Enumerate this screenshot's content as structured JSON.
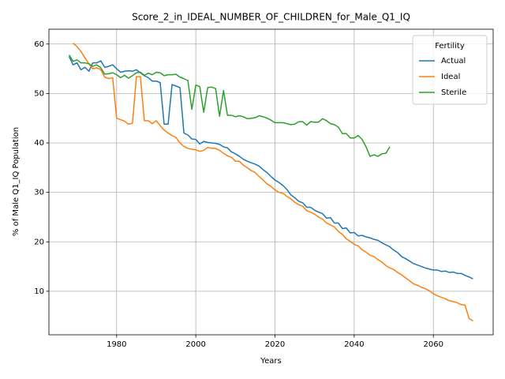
{
  "chart_data": {
    "type": "line",
    "title": "Score_2_in_IDEAL_NUMBER_OF_CHILDREN_for_Male_Q1_IQ",
    "xlabel": "Years",
    "ylabel": "% of Male Q1_IQ Population",
    "legend_title": "Fertility",
    "legend_loc": "upper right",
    "grid": true,
    "xlim": [
      1962.9,
      2075.1
    ],
    "ylim": [
      1.2,
      63.0
    ],
    "xticks": [
      1980,
      2000,
      2020,
      2040,
      2060
    ],
    "yticks": [
      10,
      20,
      30,
      40,
      50,
      60
    ],
    "x": [
      1968,
      1969,
      1970,
      1971,
      1972,
      1973,
      1974,
      1975,
      1976,
      1977,
      1978,
      1979,
      1980,
      1981,
      1982,
      1983,
      1984,
      1985,
      1986,
      1987,
      1988,
      1989,
      1990,
      1991,
      1992,
      1993,
      1994,
      1995,
      1996,
      1997,
      1998,
      1999,
      2000,
      2001,
      2002,
      2003,
      2004,
      2005,
      2006,
      2007,
      2008,
      2009,
      2010,
      2011,
      2012,
      2013,
      2014,
      2015,
      2016,
      2017,
      2018,
      2019,
      2020,
      2021,
      2022,
      2023,
      2024,
      2025,
      2026,
      2027,
      2028,
      2029,
      2030,
      2031,
      2032,
      2033,
      2034,
      2035,
      2036,
      2037,
      2038,
      2039,
      2040,
      2041,
      2042,
      2043,
      2044,
      2045,
      2046,
      2047,
      2048,
      2049,
      2050,
      2051,
      2052,
      2053,
      2054,
      2055,
      2056,
      2057,
      2058,
      2059,
      2060,
      2061,
      2062,
      2063,
      2064,
      2065,
      2066,
      2067,
      2068,
      2069,
      2070
    ],
    "series": [
      {
        "name": "Actual",
        "color": "#1f77b4",
        "values": [
          57.5,
          55.8,
          56.2,
          54.8,
          55.3,
          54.5,
          56.2,
          56.2,
          56.6,
          55.3,
          55.5,
          55.8,
          55.0,
          54.3,
          54.5,
          54.6,
          54.5,
          54.8,
          54.2,
          53.6,
          53.2,
          52.5,
          52.5,
          52.2,
          43.8,
          43.8,
          51.8,
          51.5,
          51.2,
          42.0,
          41.6,
          40.8,
          40.7,
          39.8,
          40.3,
          40.1,
          40.0,
          39.9,
          39.7,
          39.2,
          39.0,
          38.2,
          37.8,
          37.3,
          36.7,
          36.3,
          36.0,
          35.7,
          35.3,
          34.6,
          34.0,
          33.2,
          32.5,
          32.0,
          31.4,
          30.6,
          29.5,
          28.9,
          28.2,
          27.9,
          27.0,
          27.0,
          26.4,
          26.0,
          25.7,
          24.8,
          24.9,
          23.8,
          23.8,
          22.7,
          22.8,
          21.8,
          21.9,
          21.2,
          21.3,
          21.0,
          20.8,
          20.5,
          20.3,
          19.8,
          19.4,
          19.0,
          18.3,
          17.8,
          17.0,
          16.6,
          16.1,
          15.6,
          15.3,
          15.0,
          14.7,
          14.5,
          14.3,
          14.3,
          14.0,
          14.1,
          13.8,
          13.9,
          13.6,
          13.6,
          13.2,
          12.9,
          12.5
        ]
      },
      {
        "name": "Ideal",
        "color": "#ff7f0e",
        "values": [
          null,
          60.2,
          59.5,
          58.5,
          57.2,
          56.0,
          55.0,
          55.2,
          54.8,
          53.3,
          53.0,
          53.2,
          45.0,
          44.7,
          44.4,
          43.8,
          44.0,
          53.4,
          53.4,
          44.5,
          44.5,
          43.9,
          44.5,
          43.5,
          42.6,
          42.0,
          41.5,
          41.1,
          40.0,
          39.3,
          38.9,
          38.7,
          38.6,
          38.3,
          38.5,
          39.1,
          38.9,
          38.9,
          38.5,
          37.9,
          37.4,
          37.1,
          36.3,
          36.3,
          35.5,
          35.0,
          34.4,
          34.0,
          33.2,
          32.5,
          31.7,
          31.2,
          30.5,
          30.0,
          29.8,
          29.2,
          28.7,
          28.0,
          27.5,
          27.2,
          26.3,
          26.0,
          25.6,
          25.0,
          24.6,
          23.8,
          23.4,
          23.0,
          22.1,
          21.5,
          20.6,
          20.1,
          19.5,
          19.2,
          18.4,
          17.9,
          17.3,
          17.0,
          16.4,
          15.9,
          15.2,
          14.7,
          14.4,
          13.8,
          13.3,
          12.7,
          12.1,
          11.5,
          11.2,
          10.8,
          10.5,
          10.1,
          9.5,
          9.1,
          8.8,
          8.5,
          8.1,
          7.9,
          7.7,
          7.3,
          7.2,
          4.5,
          4.0
        ]
      },
      {
        "name": "Sterile",
        "color": "#2ca02c",
        "values": [
          57.8,
          56.5,
          56.8,
          56.2,
          56.2,
          56.0,
          55.5,
          55.8,
          55.2,
          53.9,
          54.0,
          54.2,
          53.8,
          53.2,
          53.7,
          53.1,
          53.6,
          54.2,
          54.3,
          53.7,
          54.1,
          53.8,
          54.3,
          54.2,
          53.6,
          53.8,
          53.8,
          53.9,
          53.3,
          53.0,
          52.6,
          46.8,
          51.7,
          51.4,
          46.2,
          51.2,
          51.3,
          51.0,
          45.4,
          50.6,
          45.6,
          45.6,
          45.3,
          45.5,
          45.3,
          44.9,
          45.0,
          45.1,
          45.5,
          45.3,
          45.0,
          44.6,
          44.1,
          44.1,
          44.1,
          43.9,
          43.7,
          43.8,
          44.3,
          44.3,
          43.6,
          44.3,
          44.2,
          44.2,
          44.9,
          44.5,
          43.9,
          43.7,
          43.2,
          41.9,
          41.9,
          41.0,
          41.0,
          41.5,
          40.7,
          39.2,
          37.3,
          37.6,
          37.3,
          37.8,
          37.9,
          39.2,
          null,
          null,
          null,
          null,
          null,
          null,
          null,
          null,
          null,
          null,
          null,
          null,
          null,
          null,
          null,
          null,
          null,
          null,
          null,
          null,
          null
        ]
      }
    ]
  }
}
